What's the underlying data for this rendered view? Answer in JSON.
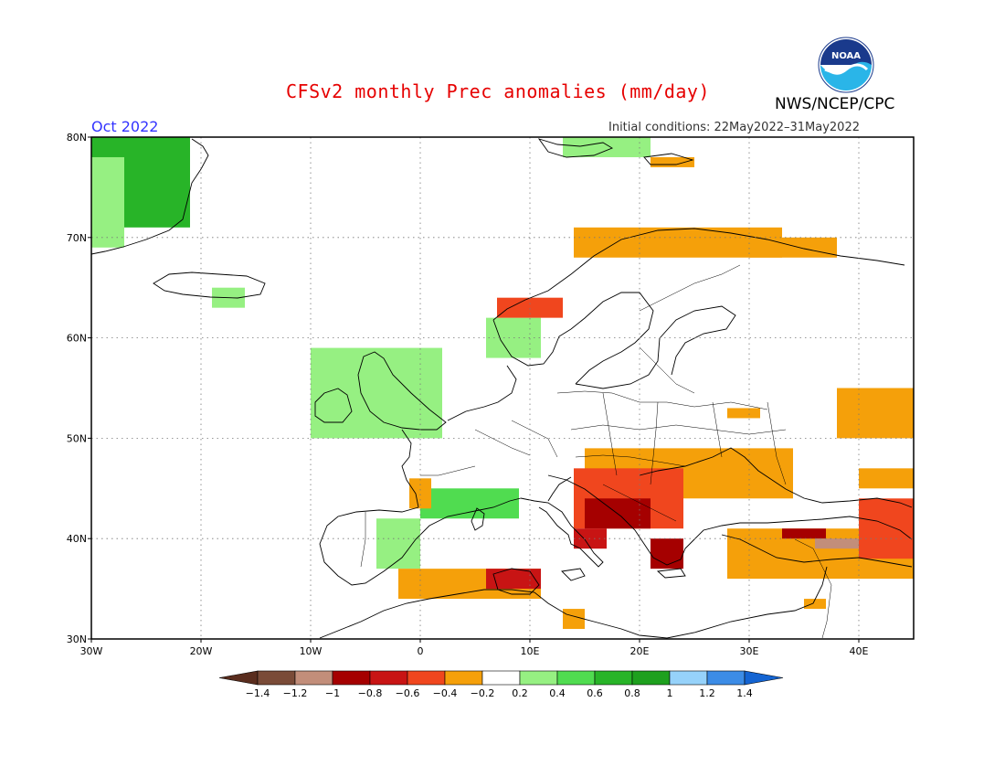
{
  "title": "CFSv2 monthly Prec anomalies (mm/day)",
  "valid_month": "Oct 2022",
  "init_conditions": "Initial conditions: 22May2022–31May2022",
  "agency": "NWS/NCEP/CPC",
  "logo_text": "NOAA",
  "map": {
    "lon_range": [
      -30,
      45
    ],
    "lat_range": [
      30,
      80
    ],
    "lat_ticks": [
      "30N",
      "40N",
      "50N",
      "60N",
      "70N",
      "80N"
    ],
    "lon_ticks": [
      "30W",
      "20W",
      "10W",
      "0",
      "10E",
      "20E",
      "30E",
      "40E"
    ],
    "lon_tick_values": [
      -30,
      -20,
      -10,
      0,
      10,
      20,
      30,
      40
    ],
    "lat_tick_values": [
      30,
      40,
      50,
      60,
      70,
      80
    ],
    "grid": "dotted"
  },
  "colorbar": {
    "labels": [
      "−1.4",
      "−1.2",
      "−1",
      "−0.8",
      "−0.6",
      "−0.4",
      "−0.2",
      "0.2",
      "0.4",
      "0.6",
      "0.8",
      "1",
      "1.2",
      "1.4"
    ],
    "colors": [
      "#7a4b38",
      "#c28e7a",
      "#a50000",
      "#c81414",
      "#f0461e",
      "#f5a00a",
      "#ffffff",
      "#96f082",
      "#50dc50",
      "#28b428",
      "#1ea01e",
      "#96d2fa",
      "#3c8ce6"
    ],
    "low_arrow_color": "#5a2d1e",
    "high_arrow_color": "#1464d2"
  },
  "anomaly_regions": [
    {
      "name": "greenland-east",
      "level": 0.6,
      "lons": [
        -30,
        -21
      ],
      "lats": [
        71,
        80
      ]
    },
    {
      "name": "greenland-coast",
      "level": 0.3,
      "lons": [
        -30,
        -27
      ],
      "lats": [
        69,
        78
      ]
    },
    {
      "name": "iceland",
      "level": 0.3,
      "lons": [
        -19,
        -16
      ],
      "lats": [
        63,
        65
      ]
    },
    {
      "name": "svalbard",
      "level": 0.3,
      "lons": [
        13,
        21
      ],
      "lats": [
        78,
        80
      ]
    },
    {
      "name": "barents-dry",
      "level": -0.3,
      "lons": [
        21,
        25
      ],
      "lats": [
        77,
        78
      ]
    },
    {
      "name": "ireland-uk",
      "level": 0.3,
      "lons": [
        -10,
        2
      ],
      "lats": [
        50,
        59
      ]
    },
    {
      "name": "norway-west",
      "level": 0.3,
      "lons": [
        6,
        11
      ],
      "lats": [
        58,
        62
      ]
    },
    {
      "name": "norway-coast-dry",
      "level": -0.5,
      "lons": [
        7,
        13
      ],
      "lats": [
        62,
        64
      ]
    },
    {
      "name": "lapland-dry",
      "level": -0.4,
      "lons": [
        14,
        33
      ],
      "lats": [
        68,
        71
      ]
    },
    {
      "name": "kola-dry",
      "level": -0.3,
      "lons": [
        30,
        38
      ],
      "lats": [
        68,
        70
      ]
    },
    {
      "name": "france-spain-wet",
      "level": 0.4,
      "lons": [
        0,
        9
      ],
      "lats": [
        42,
        45
      ]
    },
    {
      "name": "iberia-wet",
      "level": 0.3,
      "lons": [
        -4,
        0
      ],
      "lats": [
        37,
        42
      ]
    },
    {
      "name": "bay-biscay-dry",
      "level": -0.3,
      "lons": [
        -1,
        1
      ],
      "lats": [
        43,
        46
      ]
    },
    {
      "name": "north-africa-dry",
      "level": -0.3,
      "lons": [
        -2,
        11
      ],
      "lats": [
        34,
        37
      ]
    },
    {
      "name": "algeria-tunisia",
      "level": -0.8,
      "lons": [
        6,
        11
      ],
      "lats": [
        35,
        37
      ]
    },
    {
      "name": "central-europe-dry",
      "level": -0.3,
      "lons": [
        15,
        34
      ],
      "lats": [
        44,
        49
      ]
    },
    {
      "name": "balkans-dry",
      "level": -0.6,
      "lons": [
        14,
        24
      ],
      "lats": [
        41,
        47
      ]
    },
    {
      "name": "adriatic-core",
      "level": -0.9,
      "lons": [
        15,
        21
      ],
      "lats": [
        41,
        44
      ]
    },
    {
      "name": "greece",
      "level": -0.9,
      "lons": [
        21,
        24
      ],
      "lats": [
        37,
        40
      ]
    },
    {
      "name": "italy-south",
      "level": -0.7,
      "lons": [
        14,
        17
      ],
      "lats": [
        39,
        41
      ]
    },
    {
      "name": "turkey-dry",
      "level": -0.3,
      "lons": [
        28,
        45
      ],
      "lats": [
        36,
        41
      ]
    },
    {
      "name": "turkey-north",
      "level": -0.9,
      "lons": [
        33,
        37
      ],
      "lats": [
        40,
        41
      ]
    },
    {
      "name": "anatolia-east",
      "level": -1.2,
      "lons": [
        36,
        41
      ],
      "lats": [
        39,
        40
      ]
    },
    {
      "name": "caucasus",
      "level": -0.6,
      "lons": [
        40,
        45
      ],
      "lats": [
        38,
        44
      ]
    },
    {
      "name": "russia-south",
      "level": -0.3,
      "lons": [
        40,
        45
      ],
      "lats": [
        45,
        47
      ]
    },
    {
      "name": "russia-east",
      "level": -0.3,
      "lons": [
        38,
        45
      ],
      "lats": [
        50,
        55
      ]
    },
    {
      "name": "ukraine-north",
      "level": -0.3,
      "lons": [
        28,
        31
      ],
      "lats": [
        52,
        53
      ]
    },
    {
      "name": "libya-dry",
      "level": -0.3,
      "lons": [
        13,
        15
      ],
      "lats": [
        31,
        33
      ]
    },
    {
      "name": "levant",
      "level": -0.3,
      "lons": [
        35,
        37
      ],
      "lats": [
        33,
        34
      ]
    }
  ]
}
